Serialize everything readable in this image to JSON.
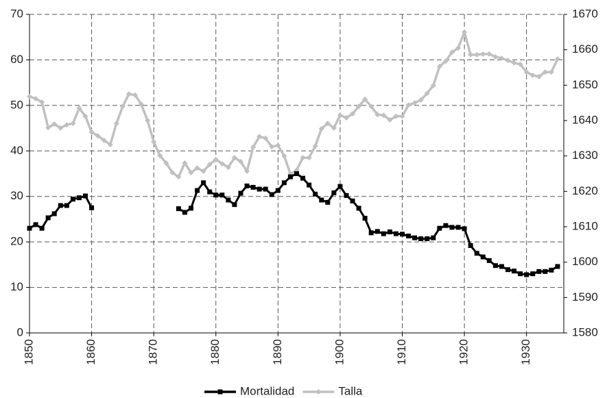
{
  "chart_data": {
    "type": "line",
    "x": [
      1850,
      1851,
      1852,
      1853,
      1854,
      1855,
      1856,
      1857,
      1858,
      1859,
      1860,
      1861,
      1862,
      1863,
      1864,
      1865,
      1866,
      1867,
      1868,
      1869,
      1870,
      1871,
      1872,
      1873,
      1874,
      1875,
      1876,
      1877,
      1878,
      1879,
      1880,
      1881,
      1882,
      1883,
      1884,
      1885,
      1886,
      1887,
      1888,
      1889,
      1890,
      1891,
      1892,
      1893,
      1894,
      1895,
      1896,
      1897,
      1898,
      1899,
      1900,
      1901,
      1902,
      1903,
      1904,
      1905,
      1906,
      1907,
      1908,
      1909,
      1910,
      1911,
      1912,
      1913,
      1914,
      1915,
      1916,
      1917,
      1918,
      1919,
      1920,
      1921,
      1922,
      1923,
      1924,
      1925,
      1926,
      1927,
      1928,
      1929,
      1930,
      1931,
      1932,
      1933,
      1934,
      1935
    ],
    "series": [
      {
        "name": "Mortalidad",
        "color": "#000000",
        "axis": "y",
        "values": [
          23,
          23.8,
          23,
          25.3,
          26.2,
          28,
          28,
          29.4,
          29.7,
          30.1,
          27.5,
          null,
          null,
          null,
          null,
          null,
          null,
          null,
          null,
          null,
          null,
          null,
          null,
          null,
          27.3,
          26.5,
          27.4,
          31.3,
          33,
          31,
          30.3,
          30.3,
          29.2,
          28.2,
          30.7,
          32.3,
          32,
          31.6,
          31.6,
          30.4,
          31.3,
          33,
          34.3,
          35,
          34,
          32.5,
          30.5,
          29.2,
          28.7,
          30.8,
          32.2,
          30.2,
          29,
          27.4,
          25.2,
          22,
          22.3,
          21.8,
          22.2,
          21.8,
          21.7,
          21.3,
          20.9,
          20.7,
          20.7,
          20.9,
          23,
          23.6,
          23.2,
          23.2,
          22.9,
          19.2,
          17.5,
          16.7,
          15.9,
          14.8,
          14.6,
          13.9,
          13.6,
          13,
          12.8,
          13,
          13.5,
          13.5,
          13.8,
          14.6
        ]
      },
      {
        "name": "Talla",
        "color": "#c0c0c0",
        "axis": "y2",
        "values": [
          1646.8,
          1646.2,
          1645.2,
          1638,
          1639,
          1637.9,
          1638.8,
          1639.2,
          1643.5,
          1641.2,
          1636.7,
          1635.7,
          1634.4,
          1633.2,
          1639.2,
          1644,
          1647.5,
          1647.2,
          1644.6,
          1640,
          1634,
          1630.1,
          1628,
          1625.3,
          1624.1,
          1628,
          1625.3,
          1626.6,
          1625.7,
          1627.6,
          1629,
          1627.8,
          1626.8,
          1629.5,
          1628.4,
          1625.7,
          1632.5,
          1635.5,
          1635,
          1632.6,
          1633,
          1630,
          1624.9,
          1626,
          1629.5,
          1629.5,
          1632.8,
          1637.7,
          1639.2,
          1637.9,
          1641.5,
          1640.8,
          1641.9,
          1644,
          1646,
          1644,
          1641.7,
          1641.5,
          1640.2,
          1641.2,
          1641.2,
          1644.4,
          1645,
          1645.8,
          1647.7,
          1649.9,
          1655.3,
          1656.8,
          1659.3,
          1660.5,
          1665,
          1658.6,
          1658.6,
          1658.8,
          1658.8,
          1658,
          1657.6,
          1657,
          1656.3,
          1655.9,
          1653.7,
          1652.8,
          1652.4,
          1653.7,
          1653.7,
          1657.4
        ]
      }
    ],
    "xlim": [
      1850,
      1936
    ],
    "xticks": [
      1850,
      1860,
      1870,
      1880,
      1890,
      1900,
      1910,
      1920,
      1930
    ],
    "ylim": [
      0,
      70
    ],
    "yticks": [
      0,
      10,
      20,
      30,
      40,
      50,
      60,
      70
    ],
    "y2lim": [
      1580,
      1670
    ],
    "y2ticks": [
      1580,
      1590,
      1600,
      1610,
      1620,
      1630,
      1640,
      1650,
      1660,
      1670
    ],
    "grid": true,
    "legend": "bottom"
  }
}
